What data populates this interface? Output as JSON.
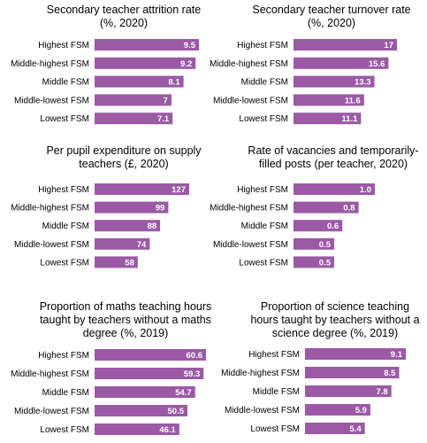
{
  "colors": {
    "bar": "#9b59a6",
    "label_text": "#ffffff"
  },
  "chart_data": [
    {
      "type": "bar",
      "orientation": "horizontal",
      "title": "Secondary teacher attrition rate\n(%, 2020)",
      "categories": [
        "Highest FSM",
        "Middle-highest FSM",
        "Middle FSM",
        "Middle-lowest FSM",
        "Lowest FSM"
      ],
      "values": [
        9.5,
        9.2,
        8.1,
        7,
        7.1
      ],
      "value_labels": [
        "9.5",
        "9.2",
        "8.1",
        "7",
        "7.1"
      ],
      "xlim": [
        0,
        9.5
      ]
    },
    {
      "type": "bar",
      "orientation": "horizontal",
      "title": "Secondary teacher turnover rate\n(%, 2020)",
      "categories": [
        "Highest FSM",
        "Middle-highest FSM",
        "Middle FSM",
        "Middle-lowest FSM",
        "Lowest FSM"
      ],
      "values": [
        17,
        15.6,
        13.3,
        11.6,
        11.1
      ],
      "value_labels": [
        "17",
        "15.6",
        "13.3",
        "11.6",
        "11.1"
      ],
      "xlim": [
        0,
        17
      ]
    },
    {
      "type": "bar",
      "orientation": "horizontal",
      "title": "Per pupil expenditure on supply\nteachers (£, 2020)",
      "categories": [
        "Highest FSM",
        "Middle-highest FSM",
        "Middle FSM",
        "Middle-lowest FSM",
        "Lowest FSM"
      ],
      "values": [
        127,
        99,
        88,
        74,
        58
      ],
      "value_labels": [
        "127",
        "99",
        "88",
        "74",
        "58"
      ],
      "xlim": [
        0,
        127
      ]
    },
    {
      "type": "bar",
      "orientation": "horizontal",
      "title": "Rate of vacancies and temporarily-\nfilled posts (per teacher, 2020)",
      "categories": [
        "Highest FSM",
        "Middle-highest FSM",
        "Middle FSM",
        "Middle-lowest FSM",
        "Lowest FSM"
      ],
      "values": [
        1.0,
        0.8,
        0.6,
        0.5,
        0.5
      ],
      "value_labels": [
        "1.0",
        "0.8",
        "0.6",
        "0.5",
        "0.5"
      ],
      "xlim": [
        0,
        1.0
      ]
    },
    {
      "type": "bar",
      "orientation": "horizontal",
      "title": "Proportion of maths teaching hours\ntaught by teachers without a maths\ndegree (%, 2019)",
      "categories": [
        "Highest FSM",
        "Middle-highest FSM",
        "Middle FSM",
        "Middle-lowest FSM",
        "Lowest FSM"
      ],
      "values": [
        60.6,
        59.3,
        54.7,
        50.5,
        46.1
      ],
      "value_labels": [
        "60.6",
        "59.3",
        "54.7",
        "50.5",
        "46.1"
      ],
      "xlim": [
        0,
        60.6
      ]
    },
    {
      "type": "bar",
      "orientation": "horizontal",
      "title": "Proportion of science teaching\nhours taught by teachers without a\nscience degree (%, 2019)",
      "categories": [
        "Highest FSM",
        "Middle-highest FSM",
        "Middle FSM",
        "Middle-lowest FSM",
        "Lowest FSM"
      ],
      "values": [
        9.1,
        8.5,
        7.8,
        5.9,
        5.4
      ],
      "value_labels": [
        "9.1",
        "8.5",
        "7.8",
        "5.9",
        "5.4"
      ],
      "xlim": [
        0,
        9.1
      ]
    }
  ]
}
